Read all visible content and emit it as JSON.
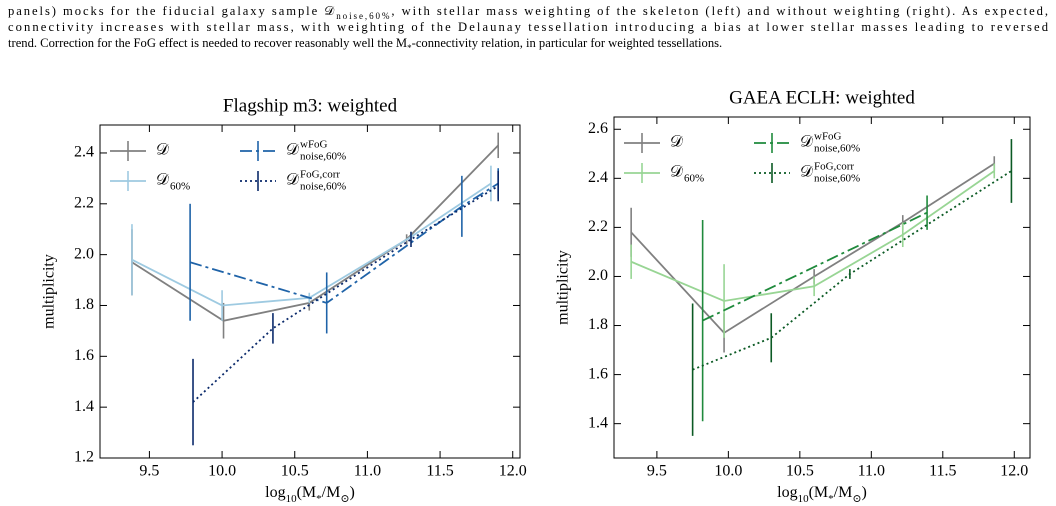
{
  "caption": [
    [
      "panels) mocks for the fiducial galaxy sample 𝒟",
      "noise,60%",
      ", with stellar mass weighting of the skeleton (left) and without weighting (right). As expected,"
    ],
    [
      "connectivity increases with stellar mass, with weighting of the Delaunay tessellation introducing a bias at lower stellar masses leading to reversed"
    ],
    [
      "trend. Correction for the FoG effect is needed to recover reasonably well the M",
      "*",
      "-connectivity relation, in particular for weighted tessellations."
    ]
  ],
  "chart_data": [
    {
      "type": "line",
      "title": "Flagship m3: weighted",
      "xlabel": [
        "log",
        "10",
        "(M",
        "*",
        "/M",
        "⊙",
        ")"
      ],
      "ylabel": "multiplicity",
      "xlim": [
        9.16,
        12.05
      ],
      "ylim": [
        1.2,
        2.51
      ],
      "xticks": [
        9.5,
        {
          "value": 10,
          "label": "10.0"
        },
        10.5,
        {
          "value": 11,
          "label": "11.0"
        },
        11.5,
        {
          "value": 12,
          "label": "12.0"
        }
      ],
      "yticks": [
        1.2,
        1.4,
        1.6,
        1.8,
        {
          "value": 2,
          "label": "2.0"
        },
        2.2,
        2.4
      ],
      "legend": "upper left",
      "series": [
        {
          "name": "𝒟",
          "color": "#808080",
          "linestyle": "solid",
          "x": [
            9.38,
            10.01,
            10.6,
            11.27,
            11.9
          ],
          "values": [
            1.97,
            1.74,
            1.81,
            2.06,
            2.43
          ],
          "errors": [
            0.13,
            0.07,
            0.03,
            0.02,
            0.05
          ]
        },
        {
          "name": "𝒟",
          "subscript": "60%",
          "color": "#9ecae1",
          "linestyle": "solid",
          "x": [
            9.38,
            10.0,
            10.6,
            11.3,
            11.85
          ],
          "values": [
            1.98,
            1.8,
            1.83,
            2.07,
            2.28
          ],
          "errors": [
            0.14,
            0.06,
            0.02,
            0.02,
            0.07
          ]
        },
        {
          "name": "𝒟",
          "subscript": "noise,60%",
          "superscript": "wFoG",
          "color": "#1f63a8",
          "linestyle": "dashdot",
          "x": [
            9.78,
            10.72,
            11.65,
            11.9
          ],
          "values": [
            1.97,
            1.81,
            2.19,
            2.28
          ],
          "errors": [
            0.23,
            0.12,
            0.12,
            0.06
          ]
        },
        {
          "name": "𝒟",
          "subscript": "noise,60%",
          "superscript": "FoG,corr",
          "color": "#0b2a6b",
          "linestyle": "dotted",
          "x": [
            9.8,
            10.35,
            11.3,
            11.9
          ],
          "values": [
            1.42,
            1.71,
            2.06,
            2.27
          ],
          "errors": [
            0.17,
            0.06,
            0.03,
            0.06
          ]
        }
      ]
    },
    {
      "type": "line",
      "title": "GAEA ECLH: weighted",
      "xlabel": [
        "log",
        "10",
        "(M",
        "*",
        "/M",
        "⊙",
        ")"
      ],
      "ylabel": "multiplicity",
      "xlim": [
        9.2,
        12.11
      ],
      "ylim": [
        1.26,
        2.65
      ],
      "xticks": [
        9.5,
        {
          "value": 10,
          "label": "10.0"
        },
        10.5,
        {
          "value": 11,
          "label": "11.0"
        },
        11.5,
        {
          "value": 12,
          "label": "12.0"
        }
      ],
      "yticks": [
        1.4,
        1.6,
        1.8,
        {
          "value": 2,
          "label": "2.0"
        },
        2.2,
        2.4,
        2.6
      ],
      "legend": "upper left",
      "series": [
        {
          "name": "𝒟",
          "color": "#808080",
          "linestyle": "solid",
          "x": [
            9.32,
            9.97,
            10.6,
            11.22,
            11.86
          ],
          "values": [
            2.18,
            1.77,
            2.0,
            2.22,
            2.46
          ],
          "errors": [
            0.1,
            0.08,
            0.03,
            0.03,
            0.03
          ]
        },
        {
          "name": "𝒟",
          "subscript": "60%",
          "color": "#98d594",
          "linestyle": "solid",
          "x": [
            9.32,
            9.97,
            10.6,
            11.22,
            11.86
          ],
          "values": [
            2.06,
            1.9,
            1.96,
            2.17,
            2.43
          ],
          "errors": [
            0.07,
            0.15,
            0.04,
            0.05,
            0.03
          ]
        },
        {
          "name": "𝒟",
          "subscript": "noise,60%",
          "superscript": "wFoG",
          "color": "#1f8a3c",
          "linestyle": "dashdot",
          "x": [
            9.82,
            11.39
          ],
          "values": [
            1.82,
            2.26
          ],
          "errors": [
            0.41,
            0.07
          ]
        },
        {
          "name": "𝒟",
          "subscript": "noise,60%",
          "superscript": "FoG,corr",
          "color": "#0b5a24",
          "linestyle": "dotted",
          "x": [
            9.75,
            10.3,
            10.85,
            11.98
          ],
          "values": [
            1.62,
            1.75,
            2.01,
            2.43
          ],
          "errors": [
            0.27,
            0.1,
            0.02,
            0.13
          ]
        }
      ]
    }
  ]
}
